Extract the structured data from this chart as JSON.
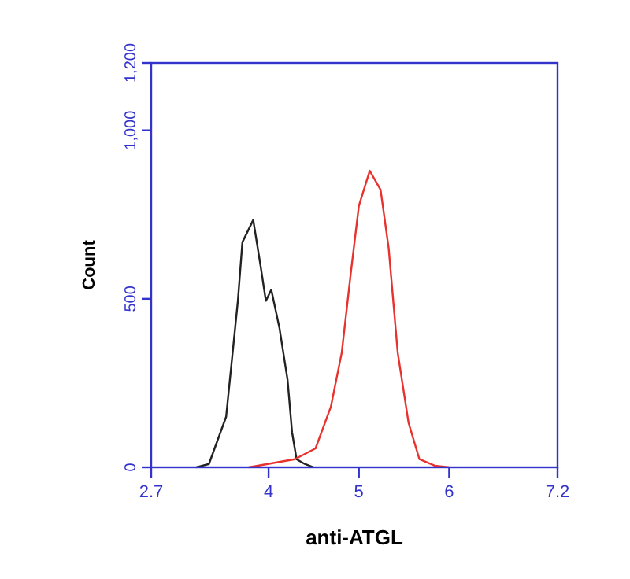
{
  "chart_data": {
    "type": "line",
    "xlabel": "anti-ATGL",
    "ylabel": "Count",
    "xlim": [
      2.7,
      7.2
    ],
    "ylim": [
      0,
      1200
    ],
    "xticks": [
      2.7,
      4,
      5,
      6,
      7.2
    ],
    "yticks": [
      0,
      500,
      {
        "value": 1000,
        "label": "1,000"
      },
      {
        "value": 1200,
        "label": "1,200"
      }
    ],
    "marker": "none",
    "line_style": "solid",
    "series": [
      {
        "color": "#222222",
        "x": [
          3.2,
          3.34,
          3.53,
          3.66,
          3.71,
          3.83,
          3.91,
          3.97,
          4.03,
          4.12,
          4.21,
          4.26,
          4.31,
          4.4,
          4.5
        ],
        "values": [
          0,
          10,
          150,
          494,
          668,
          734,
          600,
          494,
          527,
          414,
          260,
          104,
          24,
          10,
          0
        ]
      },
      {
        "color": "#e8322e",
        "x": [
          3.78,
          4.29,
          4.52,
          4.69,
          4.81,
          4.91,
          5.0,
          5.12,
          5.24,
          5.33,
          5.43,
          5.55,
          5.67,
          5.84,
          6.0
        ],
        "values": [
          0,
          24,
          56,
          180,
          340,
          575,
          776,
          880,
          824,
          650,
          340,
          132,
          24,
          5,
          0
        ]
      }
    ]
  }
}
